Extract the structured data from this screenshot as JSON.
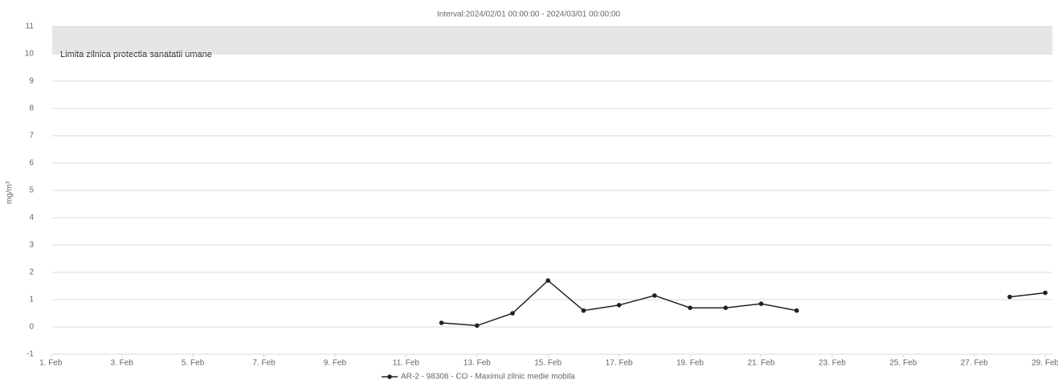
{
  "chart_data": {
    "type": "line",
    "title": "Interval:2024/02/01 00:00:00 - 2024/03/01 00:00:00",
    "y_label": "mg/m³",
    "plot_band": {
      "from": 10,
      "to": 11,
      "label": "Limita zilnica protectia sanatatii umane",
      "color": "#e6e6e6"
    },
    "x": [
      12,
      13,
      14,
      15,
      16,
      17,
      18,
      19,
      20,
      21,
      22,
      23,
      24,
      25,
      26,
      27,
      28,
      29
    ],
    "series": [
      {
        "name": "AR-2 - 98308 - CO - Maximul zilnic medie mobila",
        "color": "#222222",
        "values": [
          0.15,
          0.05,
          0.5,
          1.7,
          0.6,
          0.8,
          1.15,
          0.7,
          0.7,
          0.85,
          0.6,
          null,
          null,
          null,
          null,
          null,
          1.1,
          1.25
        ]
      }
    ],
    "xlim": [
      0.7,
      29.2
    ],
    "xticks": [
      {
        "value": 1,
        "label": "1. Feb"
      },
      {
        "value": 3,
        "label": "3. Feb"
      },
      {
        "value": 5,
        "label": "5. Feb"
      },
      {
        "value": 7,
        "label": "7. Feb"
      },
      {
        "value": 9,
        "label": "9. Feb"
      },
      {
        "value": 11,
        "label": "11. Feb"
      },
      {
        "value": 13,
        "label": "13. Feb"
      },
      {
        "value": 15,
        "label": "15. Feb"
      },
      {
        "value": 17,
        "label": "17. Feb"
      },
      {
        "value": 19,
        "label": "19. Feb"
      },
      {
        "value": 21,
        "label": "21. Feb"
      },
      {
        "value": 23,
        "label": "23. Feb"
      },
      {
        "value": 25,
        "label": "25. Feb"
      },
      {
        "value": 27,
        "label": "27. Feb"
      },
      {
        "value": 29,
        "label": "29. Feb"
      }
    ],
    "ylim": [
      -1,
      11
    ],
    "yticks": [
      -1,
      0,
      1,
      2,
      3,
      4,
      5,
      6,
      7,
      8,
      9,
      10,
      11
    ],
    "grid": true,
    "legend": "bottom"
  }
}
